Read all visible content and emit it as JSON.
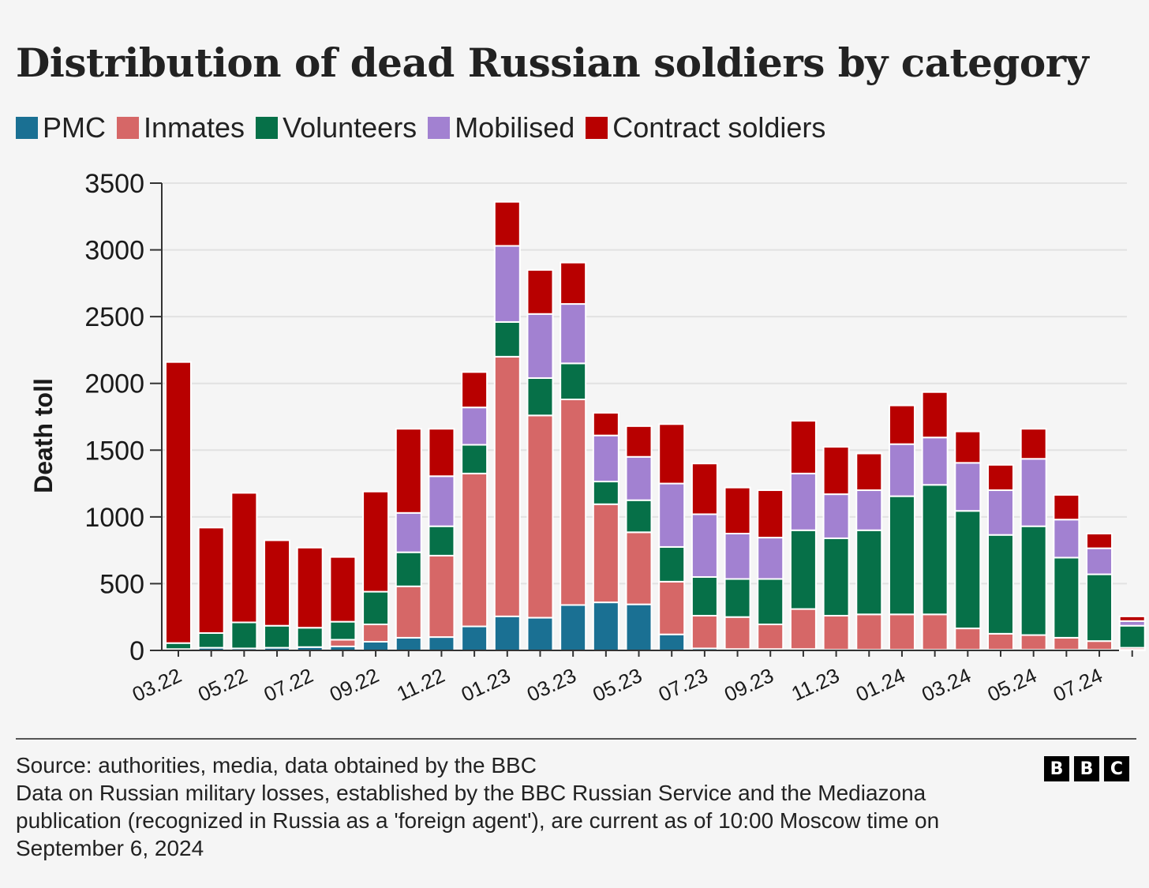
{
  "chart_data": {
    "type": "bar",
    "stacked": true,
    "title": "Distribution of dead Russian soldiers by category",
    "xlabel": "",
    "ylabel": "Death toll",
    "ylim": [
      0,
      3500
    ],
    "yticks": [
      0,
      500,
      1000,
      1500,
      2000,
      2500,
      3000,
      3500
    ],
    "grid": true,
    "legend_position": "top-left",
    "xtick_labels": [
      "03.22",
      "05.22",
      "07.22",
      "09.22",
      "11.22",
      "01.23",
      "03.23",
      "05.23",
      "07.23",
      "09.23",
      "11.23",
      "01.24",
      "03.24",
      "05.24",
      "07.24"
    ],
    "categories": [
      "03.22",
      "04.22",
      "05.22",
      "06.22",
      "07.22",
      "08.22",
      "09.22",
      "10.22",
      "11.22",
      "12.22",
      "01.23",
      "02.23",
      "03.23",
      "04.23",
      "05.23",
      "06.23",
      "07.23",
      "08.23",
      "09.23",
      "10.23",
      "11.23",
      "12.23",
      "01.24",
      "02.24",
      "03.24",
      "04.24",
      "05.24",
      "06.24",
      "07.24",
      "08.24"
    ],
    "series": [
      {
        "name": "PMC",
        "color": "#1a7093",
        "values": [
          10,
          20,
          15,
          20,
          25,
          30,
          65,
          95,
          100,
          180,
          255,
          245,
          340,
          360,
          345,
          120,
          15,
          10,
          10,
          10,
          5,
          5,
          5,
          5,
          5,
          5,
          5,
          5,
          5,
          5
        ]
      },
      {
        "name": "Inmates",
        "color": "#d66767",
        "values": [
          0,
          0,
          0,
          0,
          0,
          50,
          130,
          385,
          610,
          1145,
          1945,
          1515,
          1540,
          735,
          540,
          395,
          245,
          240,
          185,
          300,
          255,
          265,
          265,
          265,
          160,
          120,
          110,
          90,
          65,
          15
        ]
      },
      {
        "name": "Volunteers",
        "color": "#067048",
        "values": [
          45,
          110,
          195,
          165,
          145,
          135,
          245,
          255,
          220,
          215,
          260,
          280,
          270,
          170,
          240,
          260,
          290,
          285,
          340,
          590,
          580,
          630,
          885,
          970,
          880,
          740,
          815,
          600,
          500,
          165
        ]
      },
      {
        "name": "Mobilised",
        "color": "#a281d1",
        "values": [
          0,
          0,
          0,
          0,
          0,
          0,
          0,
          295,
          375,
          280,
          570,
          480,
          445,
          345,
          325,
          475,
          470,
          340,
          310,
          425,
          330,
          300,
          390,
          355,
          360,
          335,
          505,
          285,
          195,
          35
        ]
      },
      {
        "name": "Contract soldiers",
        "color": "#b80000",
        "values": [
          2105,
          790,
          970,
          640,
          600,
          485,
          750,
          630,
          355,
          265,
          330,
          330,
          310,
          170,
          230,
          445,
          380,
          345,
          355,
          395,
          355,
          275,
          290,
          340,
          235,
          190,
          225,
          185,
          110,
          35
        ]
      }
    ]
  },
  "footer": {
    "source": "Source: authorities, media, data obtained by the BBC",
    "note": "Data on Russian military losses, established by the BBC Russian Service and the Mediazona publication (recognized in Russia as a 'foreign agent'), are current as of 10:00 Moscow time on September 6, 2024",
    "logo_letters": [
      "B",
      "B",
      "C"
    ]
  }
}
